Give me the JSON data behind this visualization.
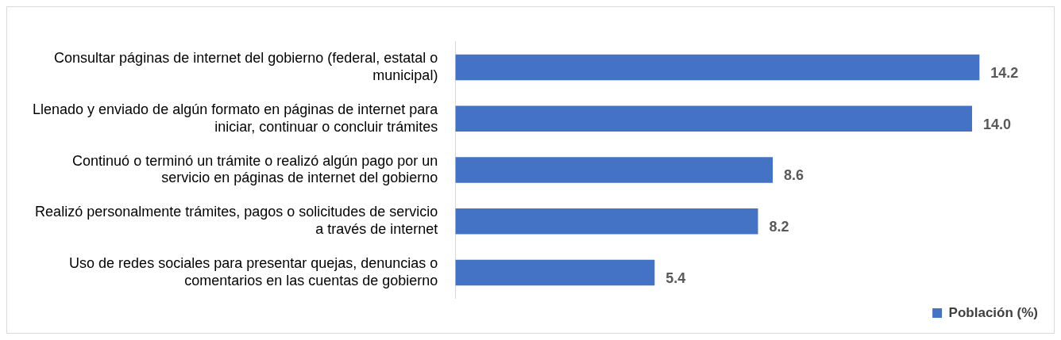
{
  "chart_data": {
    "type": "bar",
    "orientation": "horizontal",
    "categories": [
      "Consultar páginas de internet del gobierno (federal, estatal o municipal)",
      "Llenado y enviado de algún formato en páginas de internet para iniciar, continuar o concluir trámites",
      "Continuó o terminó un trámite o realizó algún pago por un servicio en páginas de internet del gobierno",
      "Realizó personalmente trámites, pagos o solicitudes de servicio a través de internet",
      "Uso de redes sociales para presentar quejas, denuncias o comentarios en las cuentas de gobierno"
    ],
    "series": [
      {
        "name": "Población (%)",
        "color": "#4472c4",
        "values": [
          14.2,
          14.0,
          8.6,
          8.2,
          5.4
        ],
        "value_labels": [
          "14.2",
          "14.0",
          "8.6",
          "8.2",
          "5.4"
        ]
      }
    ],
    "legend": "bottom right",
    "grid": false
  }
}
